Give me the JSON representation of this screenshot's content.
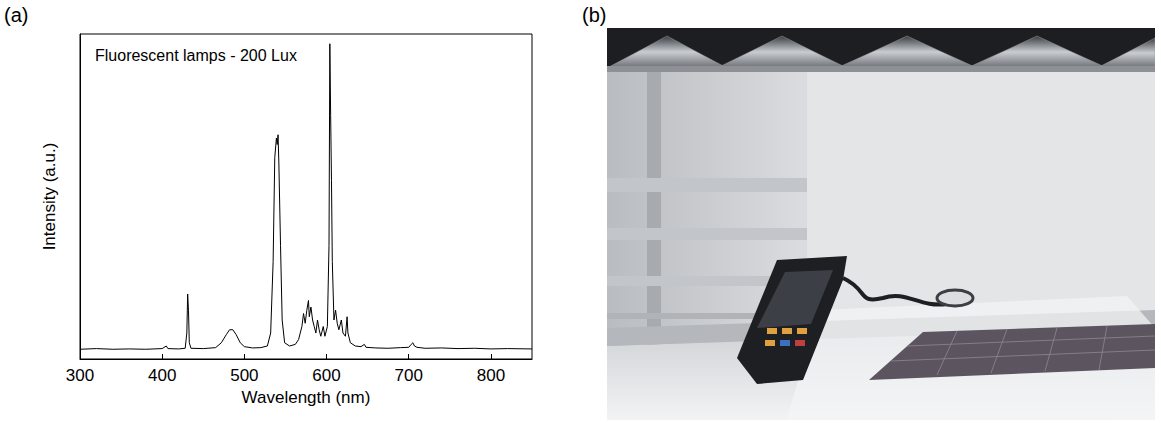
{
  "panel_labels": [
    "(a)",
    "(b)"
  ],
  "chart_data": {
    "type": "line",
    "title": "Fluorescent lamps - 200 Lux",
    "x_label": "Wavelength (nm)",
    "y_label": "Intensity (a.u.)",
    "x": [
      300,
      320,
      340,
      360,
      380,
      400,
      405,
      407,
      420,
      428,
      430,
      431,
      432,
      433,
      435,
      450,
      465,
      472,
      478,
      482,
      486,
      490,
      495,
      500,
      510,
      520,
      528,
      532,
      535,
      537,
      539,
      540,
      541,
      542,
      544,
      546,
      549,
      555,
      562,
      566,
      570,
      572,
      574,
      576,
      578,
      579,
      581,
      583,
      585,
      587,
      589,
      591,
      593,
      596,
      598,
      601,
      603,
      604,
      605,
      606,
      607,
      609,
      611,
      613,
      615,
      618,
      620,
      623,
      625,
      626,
      629,
      635,
      642,
      646,
      648,
      660,
      675,
      690,
      700,
      703,
      705,
      707,
      710,
      720,
      740,
      760,
      780,
      800,
      820,
      850
    ],
    "values": [
      0.03,
      0.032,
      0.03,
      0.031,
      0.03,
      0.032,
      0.04,
      0.032,
      0.031,
      0.033,
      0.08,
      0.2,
      0.15,
      0.05,
      0.033,
      0.032,
      0.035,
      0.05,
      0.075,
      0.09,
      0.09,
      0.075,
      0.05,
      0.038,
      0.034,
      0.035,
      0.04,
      0.08,
      0.3,
      0.62,
      0.68,
      0.66,
      0.69,
      0.6,
      0.35,
      0.12,
      0.05,
      0.04,
      0.045,
      0.06,
      0.1,
      0.14,
      0.11,
      0.15,
      0.18,
      0.13,
      0.16,
      0.12,
      0.1,
      0.08,
      0.12,
      0.09,
      0.07,
      0.1,
      0.07,
      0.1,
      0.35,
      0.97,
      0.75,
      0.55,
      0.3,
      0.12,
      0.15,
      0.11,
      0.09,
      0.12,
      0.08,
      0.07,
      0.13,
      0.08,
      0.05,
      0.04,
      0.038,
      0.045,
      0.036,
      0.034,
      0.033,
      0.035,
      0.036,
      0.045,
      0.05,
      0.04,
      0.036,
      0.033,
      0.034,
      0.032,
      0.033,
      0.031,
      0.032,
      0.031
    ],
    "color": "#000000",
    "marker": "none",
    "line_style": "solid",
    "xlim": [
      300,
      850
    ],
    "xticks": [
      300,
      400,
      500,
      600,
      700,
      800
    ],
    "ylim": [
      0,
      1
    ],
    "grid": false,
    "tick_labels": "x"
  }
}
